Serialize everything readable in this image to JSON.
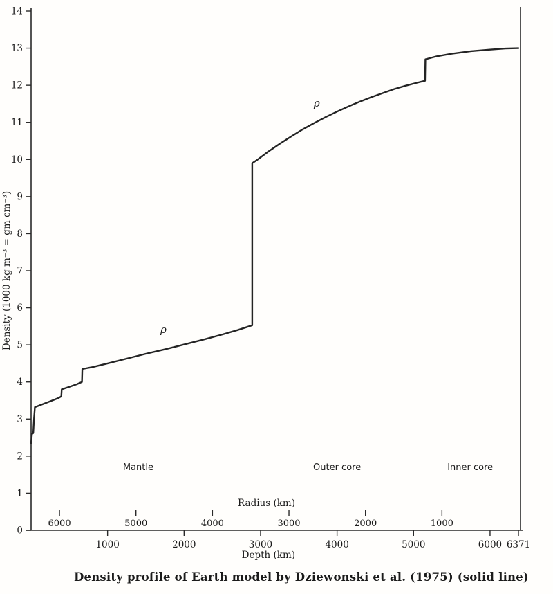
{
  "caption": "Density profile of Earth model by Dziewonski et al. (1975) (solid line)",
  "chart_data": {
    "type": "line",
    "title": "Density profile of Earth model by Dziewonski et al. (1975) (solid line)",
    "xlabel": "Depth (km)",
    "ylabel": "Density (1000 kg m⁻³ = gm cm⁻³)",
    "secondary_axis_label": "Radius (km)",
    "xlim": [
      0,
      6371
    ],
    "ylim": [
      0,
      14
    ],
    "x_ticks": [
      1000,
      2000,
      3000,
      4000,
      5000,
      6000,
      6371
    ],
    "y_ticks": [
      0,
      1,
      2,
      3,
      4,
      5,
      6,
      7,
      8,
      9,
      10,
      11,
      12,
      13,
      14
    ],
    "radius_ticks": [
      6000,
      5000,
      4000,
      3000,
      2000,
      1000
    ],
    "radius_total_km": 6371,
    "grid": false,
    "legend": "none",
    "line_color": "#242424",
    "background": "#fffefc",
    "series": [
      {
        "name": "rho (density)",
        "points": [
          [
            0,
            2.35
          ],
          [
            12,
            2.6
          ],
          [
            28,
            2.62
          ],
          [
            38,
            3.0
          ],
          [
            50,
            3.32
          ],
          [
            150,
            3.4
          ],
          [
            250,
            3.48
          ],
          [
            350,
            3.56
          ],
          [
            395,
            3.61
          ],
          [
            400,
            3.8
          ],
          [
            500,
            3.87
          ],
          [
            600,
            3.94
          ],
          [
            665,
            4.0
          ],
          [
            670,
            4.35
          ],
          [
            800,
            4.4
          ],
          [
            1000,
            4.5
          ],
          [
            1250,
            4.63
          ],
          [
            1500,
            4.76
          ],
          [
            1750,
            4.88
          ],
          [
            2000,
            5.01
          ],
          [
            2250,
            5.14
          ],
          [
            2500,
            5.28
          ],
          [
            2700,
            5.4
          ],
          [
            2891,
            5.53
          ],
          [
            2891,
            9.9
          ],
          [
            2950,
            9.98
          ],
          [
            3100,
            10.21
          ],
          [
            3250,
            10.42
          ],
          [
            3400,
            10.62
          ],
          [
            3550,
            10.81
          ],
          [
            3700,
            10.98
          ],
          [
            3850,
            11.14
          ],
          [
            4000,
            11.29
          ],
          [
            4150,
            11.43
          ],
          [
            4300,
            11.56
          ],
          [
            4450,
            11.68
          ],
          [
            4600,
            11.79
          ],
          [
            4750,
            11.9
          ],
          [
            4900,
            11.99
          ],
          [
            5050,
            12.07
          ],
          [
            5150,
            12.12
          ],
          [
            5155,
            12.7
          ],
          [
            5300,
            12.78
          ],
          [
            5500,
            12.85
          ],
          [
            5750,
            12.92
          ],
          [
            6000,
            12.96
          ],
          [
            6200,
            12.99
          ],
          [
            6371,
            13.0
          ]
        ]
      }
    ],
    "annotations": [
      {
        "text": "Mantle",
        "x": 1400,
        "y": 1.62,
        "style": "region"
      },
      {
        "text": "Outer core",
        "x": 4000,
        "y": 1.62,
        "style": "region"
      },
      {
        "text": "Inner core",
        "x": 5740,
        "y": 1.62,
        "style": "region"
      },
      {
        "text": "ρ",
        "x": 1730,
        "y": 5.32,
        "style": "rho"
      },
      {
        "text": "ρ",
        "x": 3735,
        "y": 11.42,
        "style": "rho"
      }
    ]
  }
}
